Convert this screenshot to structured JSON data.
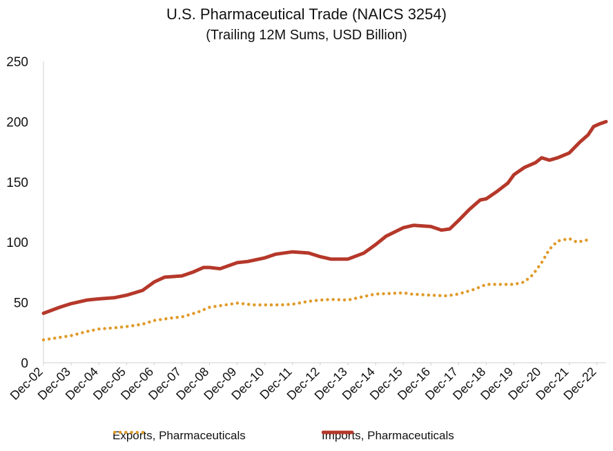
{
  "chart_data": {
    "type": "line",
    "title": "U.S. Pharmaceutical Trade (NAICS 3254)",
    "subtitle": "(Trailing 12M Sums, USD Billion)",
    "xlabel": "",
    "ylabel": "",
    "ylim": [
      0,
      250
    ],
    "yticks": [
      0,
      50,
      100,
      150,
      200,
      250
    ],
    "xlim": [
      2002.92,
      2023.25
    ],
    "xtick_labels": [
      "Dec-02",
      "Dec-03",
      "Dec-04",
      "Dec-05",
      "Dec-06",
      "Dec-07",
      "Dec-08",
      "Dec-09",
      "Dec-10",
      "Dec-11",
      "Dec-12",
      "Dec-13",
      "Dec-14",
      "Dec-15",
      "Dec-16",
      "Dec-17",
      "Dec-18",
      "Dec-19",
      "Dec-20",
      "Dec-21",
      "Dec-22"
    ],
    "legend_position": "bottom",
    "series": [
      {
        "name": "Exports, Pharmaceuticals",
        "color": "#e09a2a",
        "style": "dotted",
        "points": [
          [
            2002.92,
            19
          ],
          [
            2003.5,
            21
          ],
          [
            2003.92,
            22.5
          ],
          [
            2004.5,
            26
          ],
          [
            2004.92,
            28
          ],
          [
            2005.5,
            29
          ],
          [
            2005.92,
            30
          ],
          [
            2006.5,
            32
          ],
          [
            2006.92,
            35
          ],
          [
            2007.5,
            37
          ],
          [
            2007.92,
            38
          ],
          [
            2008.5,
            42
          ],
          [
            2008.92,
            46
          ],
          [
            2009.5,
            48
          ],
          [
            2009.92,
            49.5
          ],
          [
            2010.5,
            48
          ],
          [
            2010.92,
            48
          ],
          [
            2011.5,
            48
          ],
          [
            2011.92,
            48.5
          ],
          [
            2012.5,
            51
          ],
          [
            2012.92,
            52
          ],
          [
            2013.3,
            52.5
          ],
          [
            2013.92,
            52
          ],
          [
            2014.5,
            55
          ],
          [
            2014.92,
            57
          ],
          [
            2015.5,
            57.5
          ],
          [
            2015.92,
            58
          ],
          [
            2016.2,
            57
          ],
          [
            2016.92,
            56
          ],
          [
            2017.5,
            55.5
          ],
          [
            2017.92,
            57
          ],
          [
            2018.5,
            61
          ],
          [
            2018.92,
            65
          ],
          [
            2019.5,
            65
          ],
          [
            2019.92,
            65
          ],
          [
            2020.3,
            67
          ],
          [
            2020.6,
            73
          ],
          [
            2020.92,
            83
          ],
          [
            2021.2,
            94
          ],
          [
            2021.5,
            101
          ],
          [
            2021.92,
            103
          ],
          [
            2022.2,
            100
          ],
          [
            2022.6,
            102
          ]
        ]
      },
      {
        "name": "Imports, Pharmaceuticals",
        "color": "#b5382a",
        "style": "solid",
        "points": [
          [
            2002.92,
            41
          ],
          [
            2003.5,
            46
          ],
          [
            2003.92,
            49
          ],
          [
            2004.5,
            52
          ],
          [
            2004.92,
            53
          ],
          [
            2005.5,
            54
          ],
          [
            2005.92,
            56
          ],
          [
            2006.5,
            60
          ],
          [
            2006.92,
            67
          ],
          [
            2007.3,
            71
          ],
          [
            2007.92,
            72
          ],
          [
            2008.3,
            75
          ],
          [
            2008.7,
            79
          ],
          [
            2008.92,
            79
          ],
          [
            2009.3,
            78
          ],
          [
            2009.92,
            83
          ],
          [
            2010.3,
            84
          ],
          [
            2010.92,
            87
          ],
          [
            2011.3,
            90
          ],
          [
            2011.92,
            92
          ],
          [
            2012.5,
            91
          ],
          [
            2012.92,
            88
          ],
          [
            2013.3,
            86
          ],
          [
            2013.92,
            86
          ],
          [
            2014.5,
            91
          ],
          [
            2014.92,
            98
          ],
          [
            2015.3,
            105
          ],
          [
            2015.92,
            112
          ],
          [
            2016.3,
            114
          ],
          [
            2016.92,
            113
          ],
          [
            2017.3,
            110
          ],
          [
            2017.6,
            111
          ],
          [
            2017.92,
            118
          ],
          [
            2018.3,
            127
          ],
          [
            2018.7,
            135
          ],
          [
            2018.92,
            136
          ],
          [
            2019.3,
            142
          ],
          [
            2019.7,
            149
          ],
          [
            2019.92,
            156
          ],
          [
            2020.3,
            162
          ],
          [
            2020.7,
            166
          ],
          [
            2020.92,
            170
          ],
          [
            2021.2,
            168
          ],
          [
            2021.5,
            170
          ],
          [
            2021.92,
            174
          ],
          [
            2022.3,
            183
          ],
          [
            2022.6,
            189
          ],
          [
            2022.8,
            196
          ],
          [
            2023.0,
            198
          ],
          [
            2023.25,
            200
          ]
        ]
      }
    ]
  }
}
